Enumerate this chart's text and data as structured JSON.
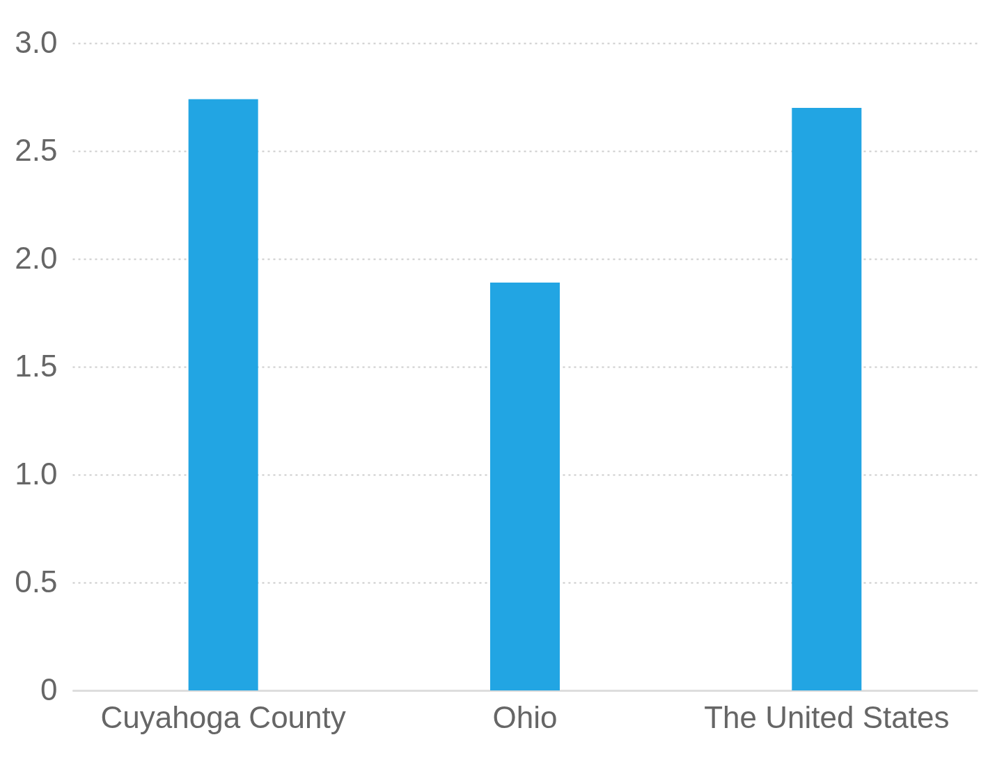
{
  "chart_data": {
    "type": "bar",
    "categories": [
      "Cuyahoga County",
      "Ohio",
      "The United States"
    ],
    "values": [
      2.74,
      1.89,
      2.7
    ],
    "color": "#22a5e3",
    "ylim": [
      0,
      3.0
    ],
    "yticks": [
      0,
      {
        "value": 0.5,
        "label": "0.5"
      },
      {
        "value": 1,
        "label": "1.0"
      },
      {
        "value": 1.5,
        "label": "1.5"
      },
      {
        "value": 2,
        "label": "2.0"
      },
      {
        "value": 2.5,
        "label": "2.5"
      },
      {
        "value": 3,
        "label": "3.0"
      }
    ],
    "grid": "y"
  }
}
